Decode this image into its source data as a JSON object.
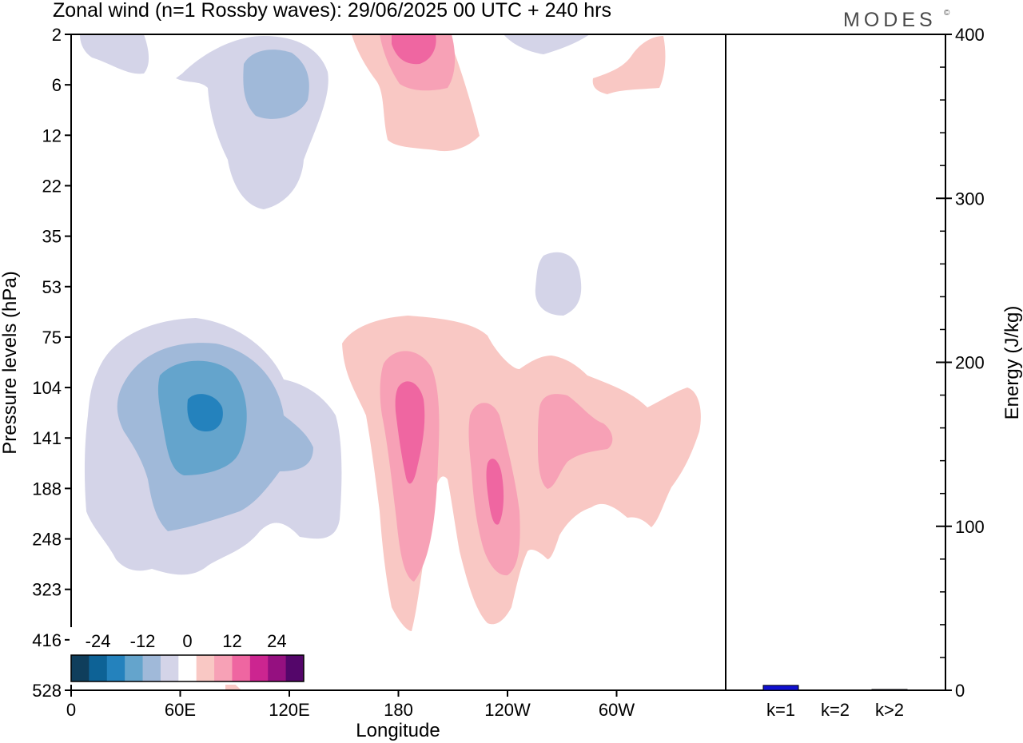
{
  "header": {
    "title": "Zonal wind (n=1 Rossby waves):  29/06/2025  00 UTC  + 240 hrs",
    "brand": "MODES",
    "brand_mark": "©"
  },
  "chart_data": [
    {
      "type": "heatmap",
      "title": "Zonal wind (n=1 Rossby waves):  29/06/2025  00 UTC  + 240 hrs",
      "xlabel": "Longitude",
      "ylabel": "Pressure levels (hPa)",
      "x_ticks": [
        "0",
        "60E",
        "120E",
        "180",
        "120W",
        "60W"
      ],
      "x_tick_degrees": [
        0,
        60,
        120,
        180,
        240,
        300
      ],
      "x_range_degrees": [
        0,
        360
      ],
      "y_ticks": [
        "2",
        "6",
        "12",
        "22",
        "35",
        "53",
        "75",
        "104",
        "141",
        "188",
        "248",
        "323",
        "416",
        "528"
      ],
      "y_scale": "pressure levels, top 2 hPa to bottom 528 hPa",
      "colorbar": {
        "labels": [
          "-24",
          "-12",
          "0",
          "12",
          "24"
        ],
        "colors": [
          "#0f3e5c",
          "#0d6296",
          "#2482bd",
          "#64a4cc",
          "#a0b9d9",
          "#d4d4e8",
          "#ffffff",
          "#f9c8c4",
          "#f7a1b6",
          "#ef66a1",
          "#cc2590",
          "#951080",
          "#54066a"
        ],
        "placement": "bottom-left"
      },
      "features": [
        {
          "sign": "negative",
          "center_lon": 78,
          "center_level": "104-141",
          "min_level": -24
        },
        {
          "sign": "negative",
          "center_lon": 118,
          "center_level": "6-12",
          "min_level": -12
        },
        {
          "sign": "positive",
          "center_lon": 187,
          "center_level": "2-6",
          "max_level": 12
        },
        {
          "sign": "positive",
          "center_lon": 185,
          "center_level": "141",
          "max_level": 12
        },
        {
          "sign": "positive",
          "center_lon": 233,
          "center_level": "188",
          "max_level": 12
        },
        {
          "sign": "positive",
          "center_lon": 268,
          "center_level": "141",
          "max_level": 12
        }
      ]
    },
    {
      "type": "bar",
      "ylabel": "Energy (J/kg)",
      "categories": [
        "k=1",
        "k=2",
        "k>2"
      ],
      "values": [
        3,
        0,
        0.5
      ],
      "ylim": [
        0,
        400
      ],
      "y_ticks": [
        "0",
        "100",
        "200",
        "300",
        "400"
      ],
      "bar_color": "#1010d0"
    }
  ]
}
